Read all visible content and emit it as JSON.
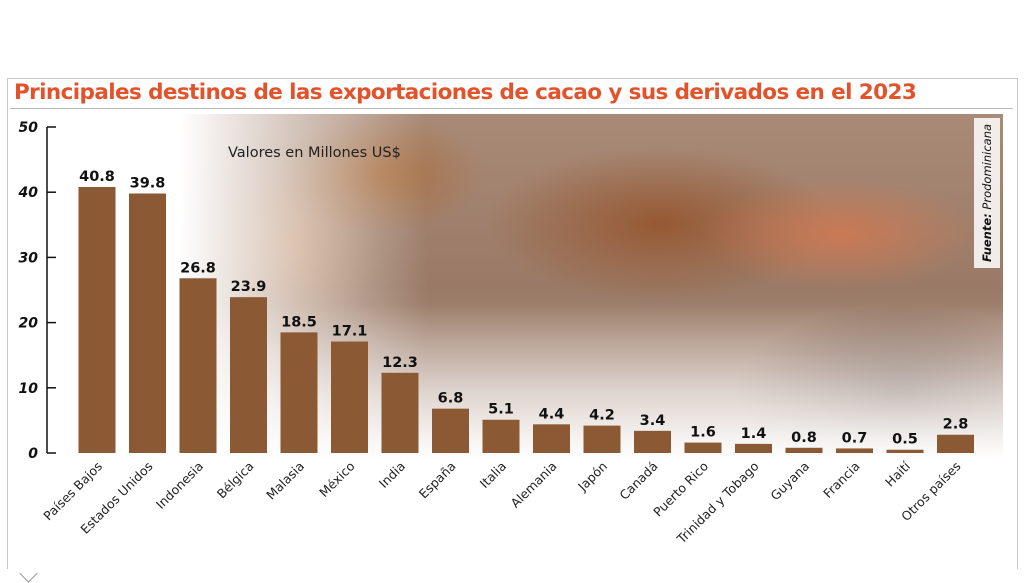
{
  "chart_data": {
    "type": "bar",
    "title": "Principales destinos de las exportaciones de cacao y sus derivados en el 2023",
    "subtitle": "Valores en Millones US$",
    "source_label": "Fuente:",
    "source": "Prodominicana",
    "categories": [
      "Países Bajos",
      "Estados Unidos",
      "Indonesia",
      "Bélgica",
      "Malasia",
      "México",
      "India",
      "España",
      "Italia",
      "Alemania",
      "Japón",
      "Canadá",
      "Puerto Rico",
      "Trinidad y Tobago",
      "Guyana",
      "Francia",
      "Haití",
      "Otros países"
    ],
    "values": [
      40.8,
      39.8,
      26.8,
      23.9,
      18.5,
      17.1,
      12.3,
      6.8,
      5.1,
      4.4,
      4.2,
      3.4,
      1.6,
      1.4,
      0.8,
      0.7,
      0.5,
      2.8
    ],
    "value_labels": [
      "40.8",
      "39.8",
      "26.8",
      "23.9",
      "18.5",
      "17.1",
      "12.3",
      "6.8",
      "5.1",
      "4.4",
      "4.2",
      "3.4",
      "1.6",
      "1.4",
      "0.8",
      "0.7",
      "0.5",
      "2.8"
    ],
    "yticks": [
      "0",
      "10",
      "20",
      "30",
      "40",
      "50"
    ],
    "ylim": [
      0,
      50
    ],
    "xlabel": "",
    "ylabel": "",
    "grid": false,
    "bar_color": "#8b5a34",
    "title_color": "#e2532b"
  }
}
